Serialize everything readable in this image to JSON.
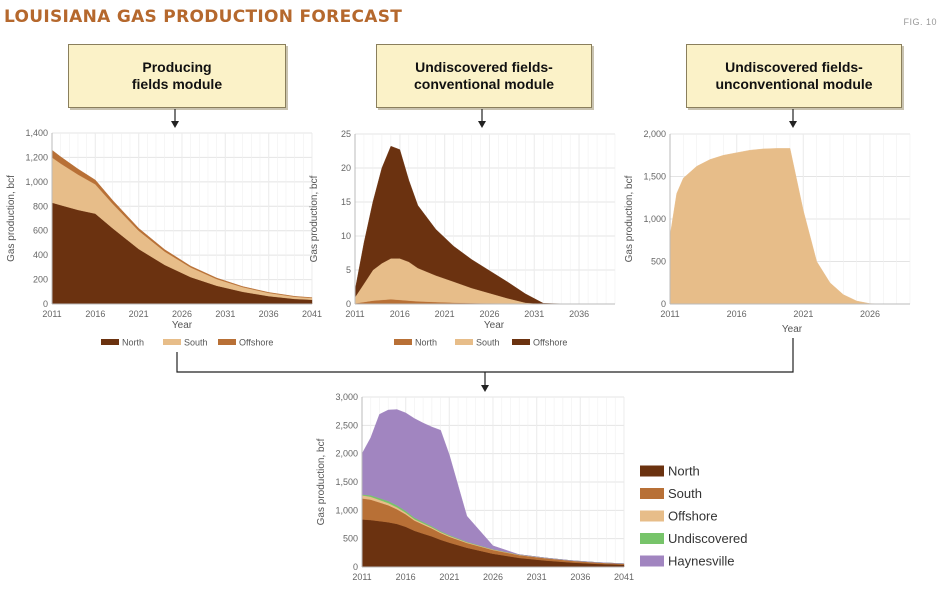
{
  "header": {
    "title": "LOUISIANA GAS PRODUCTION FORECAST",
    "fig": "FIG. 10"
  },
  "modules": [
    {
      "line1": "Producing",
      "line2": "fields module"
    },
    {
      "line1": "Undiscovered fields-",
      "line2": "conventional module"
    },
    {
      "line1": "Undiscovered fields-",
      "line2": "unconventional module"
    }
  ],
  "colors": {
    "north": "#6b3210",
    "south": "#b87036",
    "offshore": "#e7bd89",
    "undiscovered": "#77c46a",
    "haynesville": "#a185c0",
    "arrow": "#222222",
    "axis": "#bbbbbb"
  },
  "chart_data": [
    {
      "type": "area",
      "stacked": true,
      "x": [
        2011,
        2012,
        2014,
        2016,
        2018,
        2021,
        2024,
        2027,
        2030,
        2033,
        2036,
        2039,
        2041
      ],
      "series": [
        {
          "name": "North",
          "values": [
            830,
            810,
            770,
            740,
            620,
            450,
            320,
            220,
            150,
            100,
            65,
            42,
            35
          ]
        },
        {
          "name": "South",
          "values": [
            370,
            340,
            290,
            240,
            200,
            150,
            110,
            80,
            55,
            38,
            26,
            18,
            15
          ]
        },
        {
          "name": "Offshore",
          "values": [
            60,
            55,
            45,
            35,
            28,
            20,
            15,
            10,
            8,
            5,
            4,
            3,
            2
          ]
        }
      ],
      "xticks": [
        "2011",
        "2016",
        "2021",
        "2026",
        "2031",
        "2036",
        "2041"
      ],
      "yticks": [
        "0",
        "200",
        "400",
        "600",
        "800",
        "1,000",
        "1,200",
        "1,400"
      ],
      "xlim": [
        2011,
        2041
      ],
      "ylim": [
        0,
        1400
      ],
      "xlabel": "Year",
      "ylabel": "Gas production, bcf",
      "legend": [
        "North",
        "South",
        "Offshore"
      ],
      "legend_position": "bottom"
    },
    {
      "type": "area",
      "stacked": true,
      "x": [
        2011,
        2012,
        2013,
        2014,
        2015,
        2016,
        2017,
        2018,
        2020,
        2022,
        2024,
        2026,
        2028,
        2030,
        2032,
        2035
      ],
      "series": [
        {
          "name": "North",
          "values": [
            0.1,
            0.3,
            0.5,
            0.6,
            0.7,
            0.6,
            0.5,
            0.4,
            0.3,
            0.2,
            0.15,
            0.1,
            0.05,
            0,
            0,
            0
          ]
        },
        {
          "name": "South",
          "values": [
            0.9,
            2.7,
            4.5,
            5.4,
            6.0,
            6.1,
            5.7,
            4.9,
            3.9,
            3.1,
            2.2,
            1.5,
            0.8,
            0.2,
            0,
            0
          ]
        },
        {
          "name": "Offshore",
          "values": [
            1.0,
            6.0,
            10.0,
            14.0,
            16.5,
            16.0,
            12.0,
            9.2,
            6.8,
            5.2,
            4.2,
            3.3,
            2.4,
            1.3,
            0.1,
            0
          ]
        }
      ],
      "xticks": [
        "2011",
        "2016",
        "2021",
        "2026",
        "2031",
        "2036"
      ],
      "yticks": [
        "0",
        "5",
        "10",
        "15",
        "20",
        "25"
      ],
      "xlim": [
        2011,
        2040
      ],
      "ylim": [
        0,
        25
      ],
      "xlabel": "Year",
      "ylabel": "Gas production, bcf",
      "legend": [
        "North",
        "South",
        "Offshore"
      ],
      "legend_position": "bottom"
    },
    {
      "type": "area",
      "stacked": true,
      "x": [
        2011,
        2011.5,
        2012,
        2013,
        2014,
        2015,
        2016,
        2017,
        2018,
        2019,
        2020,
        2021,
        2022,
        2023,
        2024,
        2025,
        2026,
        2027
      ],
      "series": [
        {
          "name": "Undiscovered fields-unconventional",
          "values": [
            800,
            1300,
            1480,
            1620,
            1700,
            1750,
            1780,
            1810,
            1825,
            1830,
            1830,
            1100,
            500,
            250,
            110,
            35,
            5,
            0
          ]
        }
      ],
      "xticks": [
        "2011",
        "2016",
        "2021",
        "2026"
      ],
      "yticks": [
        "0",
        "500",
        "1,000",
        "1,500",
        "2,000"
      ],
      "xlim": [
        2011,
        2029
      ],
      "ylim": [
        0,
        2000
      ],
      "xlabel": "Year",
      "ylabel": "Gas production, bcf"
    },
    {
      "type": "area",
      "stacked": true,
      "x": [
        2011,
        2012,
        2013,
        2014,
        2015,
        2016,
        2017,
        2018,
        2019,
        2020,
        2021,
        2023,
        2026,
        2029,
        2032,
        2035,
        2038,
        2041
      ],
      "series": [
        {
          "name": "North",
          "values": [
            840,
            830,
            810,
            790,
            760,
            710,
            640,
            590,
            540,
            480,
            430,
            340,
            235,
            160,
            115,
            80,
            55,
            40
          ]
        },
        {
          "name": "South",
          "values": [
            370,
            360,
            330,
            300,
            260,
            220,
            180,
            160,
            140,
            120,
            105,
            85,
            65,
            50,
            40,
            30,
            22,
            18
          ]
        },
        {
          "name": "Offshore",
          "values": [
            55,
            50,
            45,
            40,
            35,
            30,
            25,
            22,
            20,
            17,
            15,
            12,
            9,
            7,
            5,
            3,
            2,
            1
          ]
        },
        {
          "name": "Undiscovered",
          "values": [
            15,
            25,
            30,
            35,
            33,
            30,
            27,
            24,
            20,
            17,
            14,
            10,
            5,
            2,
            1,
            0,
            0,
            0
          ]
        },
        {
          "name": "Haynesville",
          "values": [
            720,
            1015,
            1480,
            1605,
            1692,
            1730,
            1748,
            1745,
            1750,
            1780,
            1416,
            453,
            61,
            0,
            0,
            0,
            0,
            0
          ]
        }
      ],
      "xticks": [
        "2011",
        "2016",
        "2021",
        "2026",
        "2031",
        "2036",
        "2041"
      ],
      "yticks": [
        "0",
        "500",
        "1,000",
        "1,500",
        "2,000",
        "2,500",
        "3,000"
      ],
      "xlim": [
        2011,
        2041
      ],
      "ylim": [
        0,
        3000
      ],
      "xlabel": "",
      "ylabel": "Gas production, bcf",
      "legend": [
        "North",
        "South",
        "Offshore",
        "Undiscovered",
        "Haynesville"
      ],
      "legend_position": "right"
    }
  ]
}
